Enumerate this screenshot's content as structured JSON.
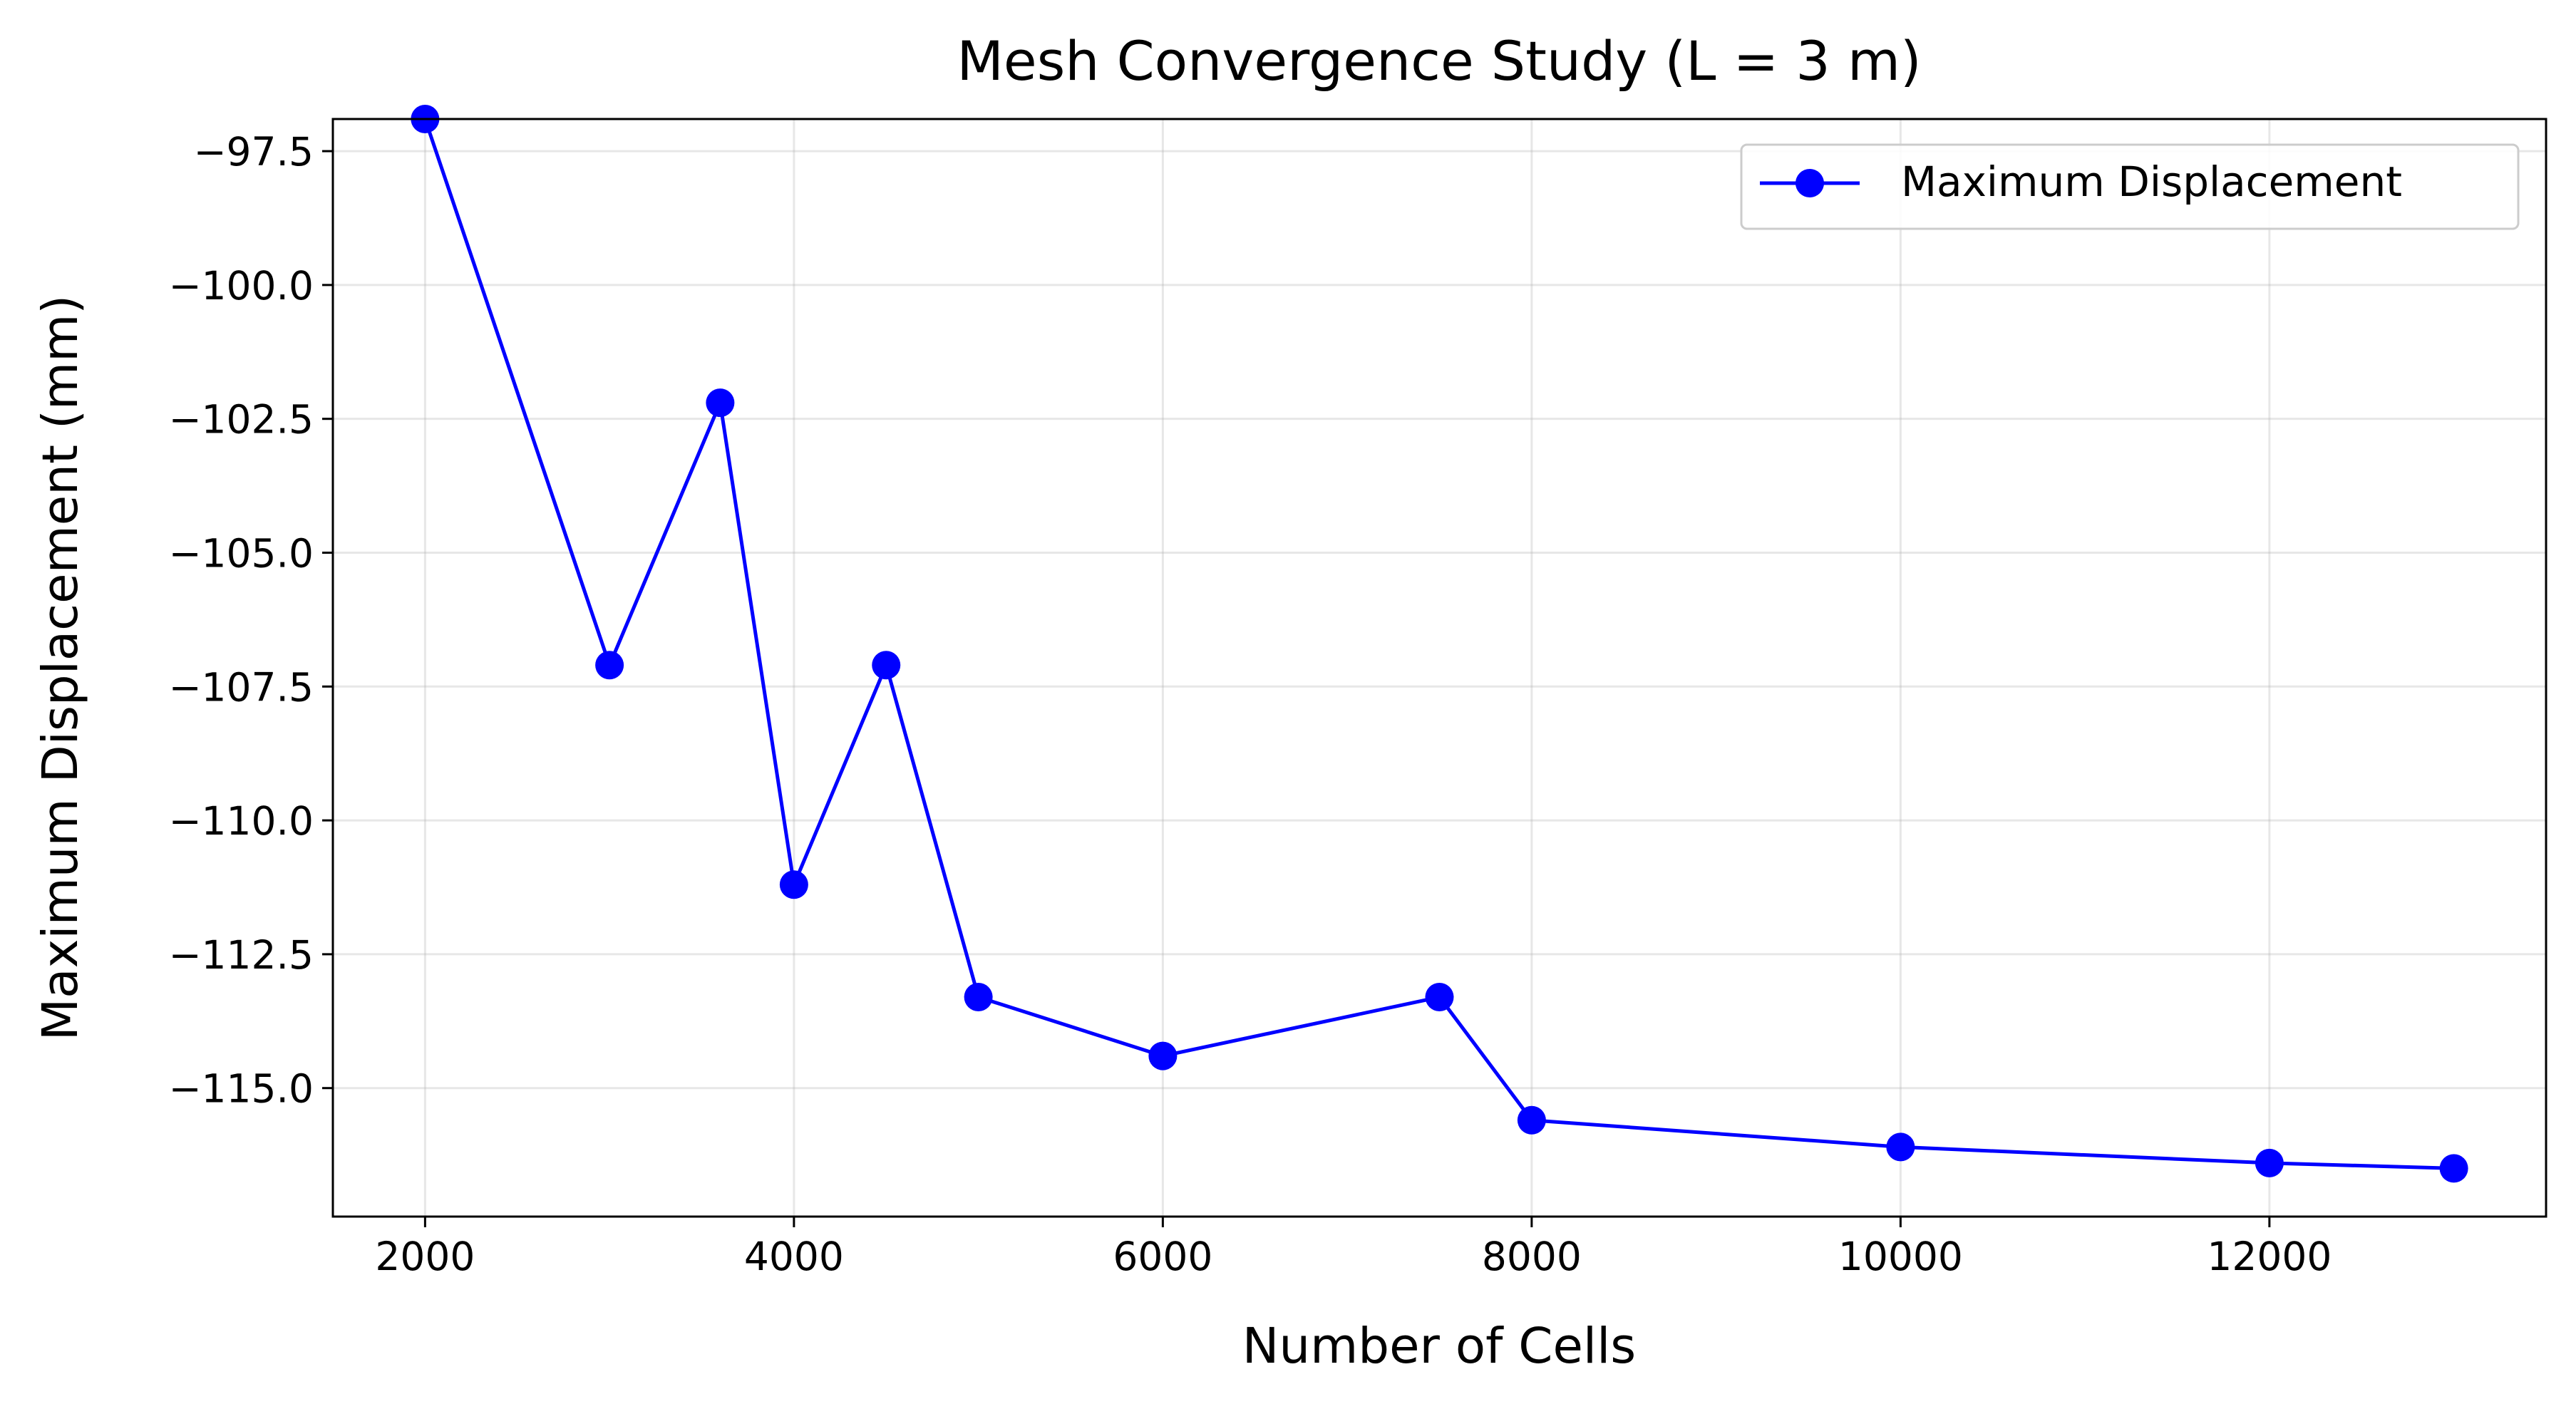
{
  "chart_data": {
    "type": "line",
    "title": "Mesh Convergence Study (L = 3 m)",
    "xlabel": "Number of Cells",
    "ylabel": "Maximum Displacement (mm)",
    "xlim": [
      1500,
      13500
    ],
    "ylim": [
      -117.4,
      -96.9
    ],
    "xticks": [
      2000,
      4000,
      6000,
      8000,
      10000,
      12000
    ],
    "xtick_labels": [
      "2000",
      "4000",
      "6000",
      "8000",
      "10000",
      "12000"
    ],
    "yticks": [
      -97.5,
      -100.0,
      -102.5,
      -105.0,
      -107.5,
      -110.0,
      -112.5,
      -115.0
    ],
    "ytick_labels": [
      "−97.5",
      "−100.0",
      "−102.5",
      "−105.0",
      "−107.5",
      "−110.0",
      "−112.5",
      "−115.0"
    ],
    "grid": true,
    "legend_position": "top-right",
    "series": [
      {
        "name": "Maximum Displacement",
        "color": "#0000ff",
        "marker": "circle",
        "x": [
          2000,
          3000,
          3600,
          4000,
          4500,
          5000,
          6000,
          7500,
          8000,
          10000,
          12000,
          13000
        ],
        "y": [
          -96.9,
          -107.1,
          -102.2,
          -111.2,
          -107.1,
          -113.3,
          -114.4,
          -113.3,
          -115.6,
          -116.1,
          -116.4,
          -116.5
        ]
      }
    ]
  }
}
